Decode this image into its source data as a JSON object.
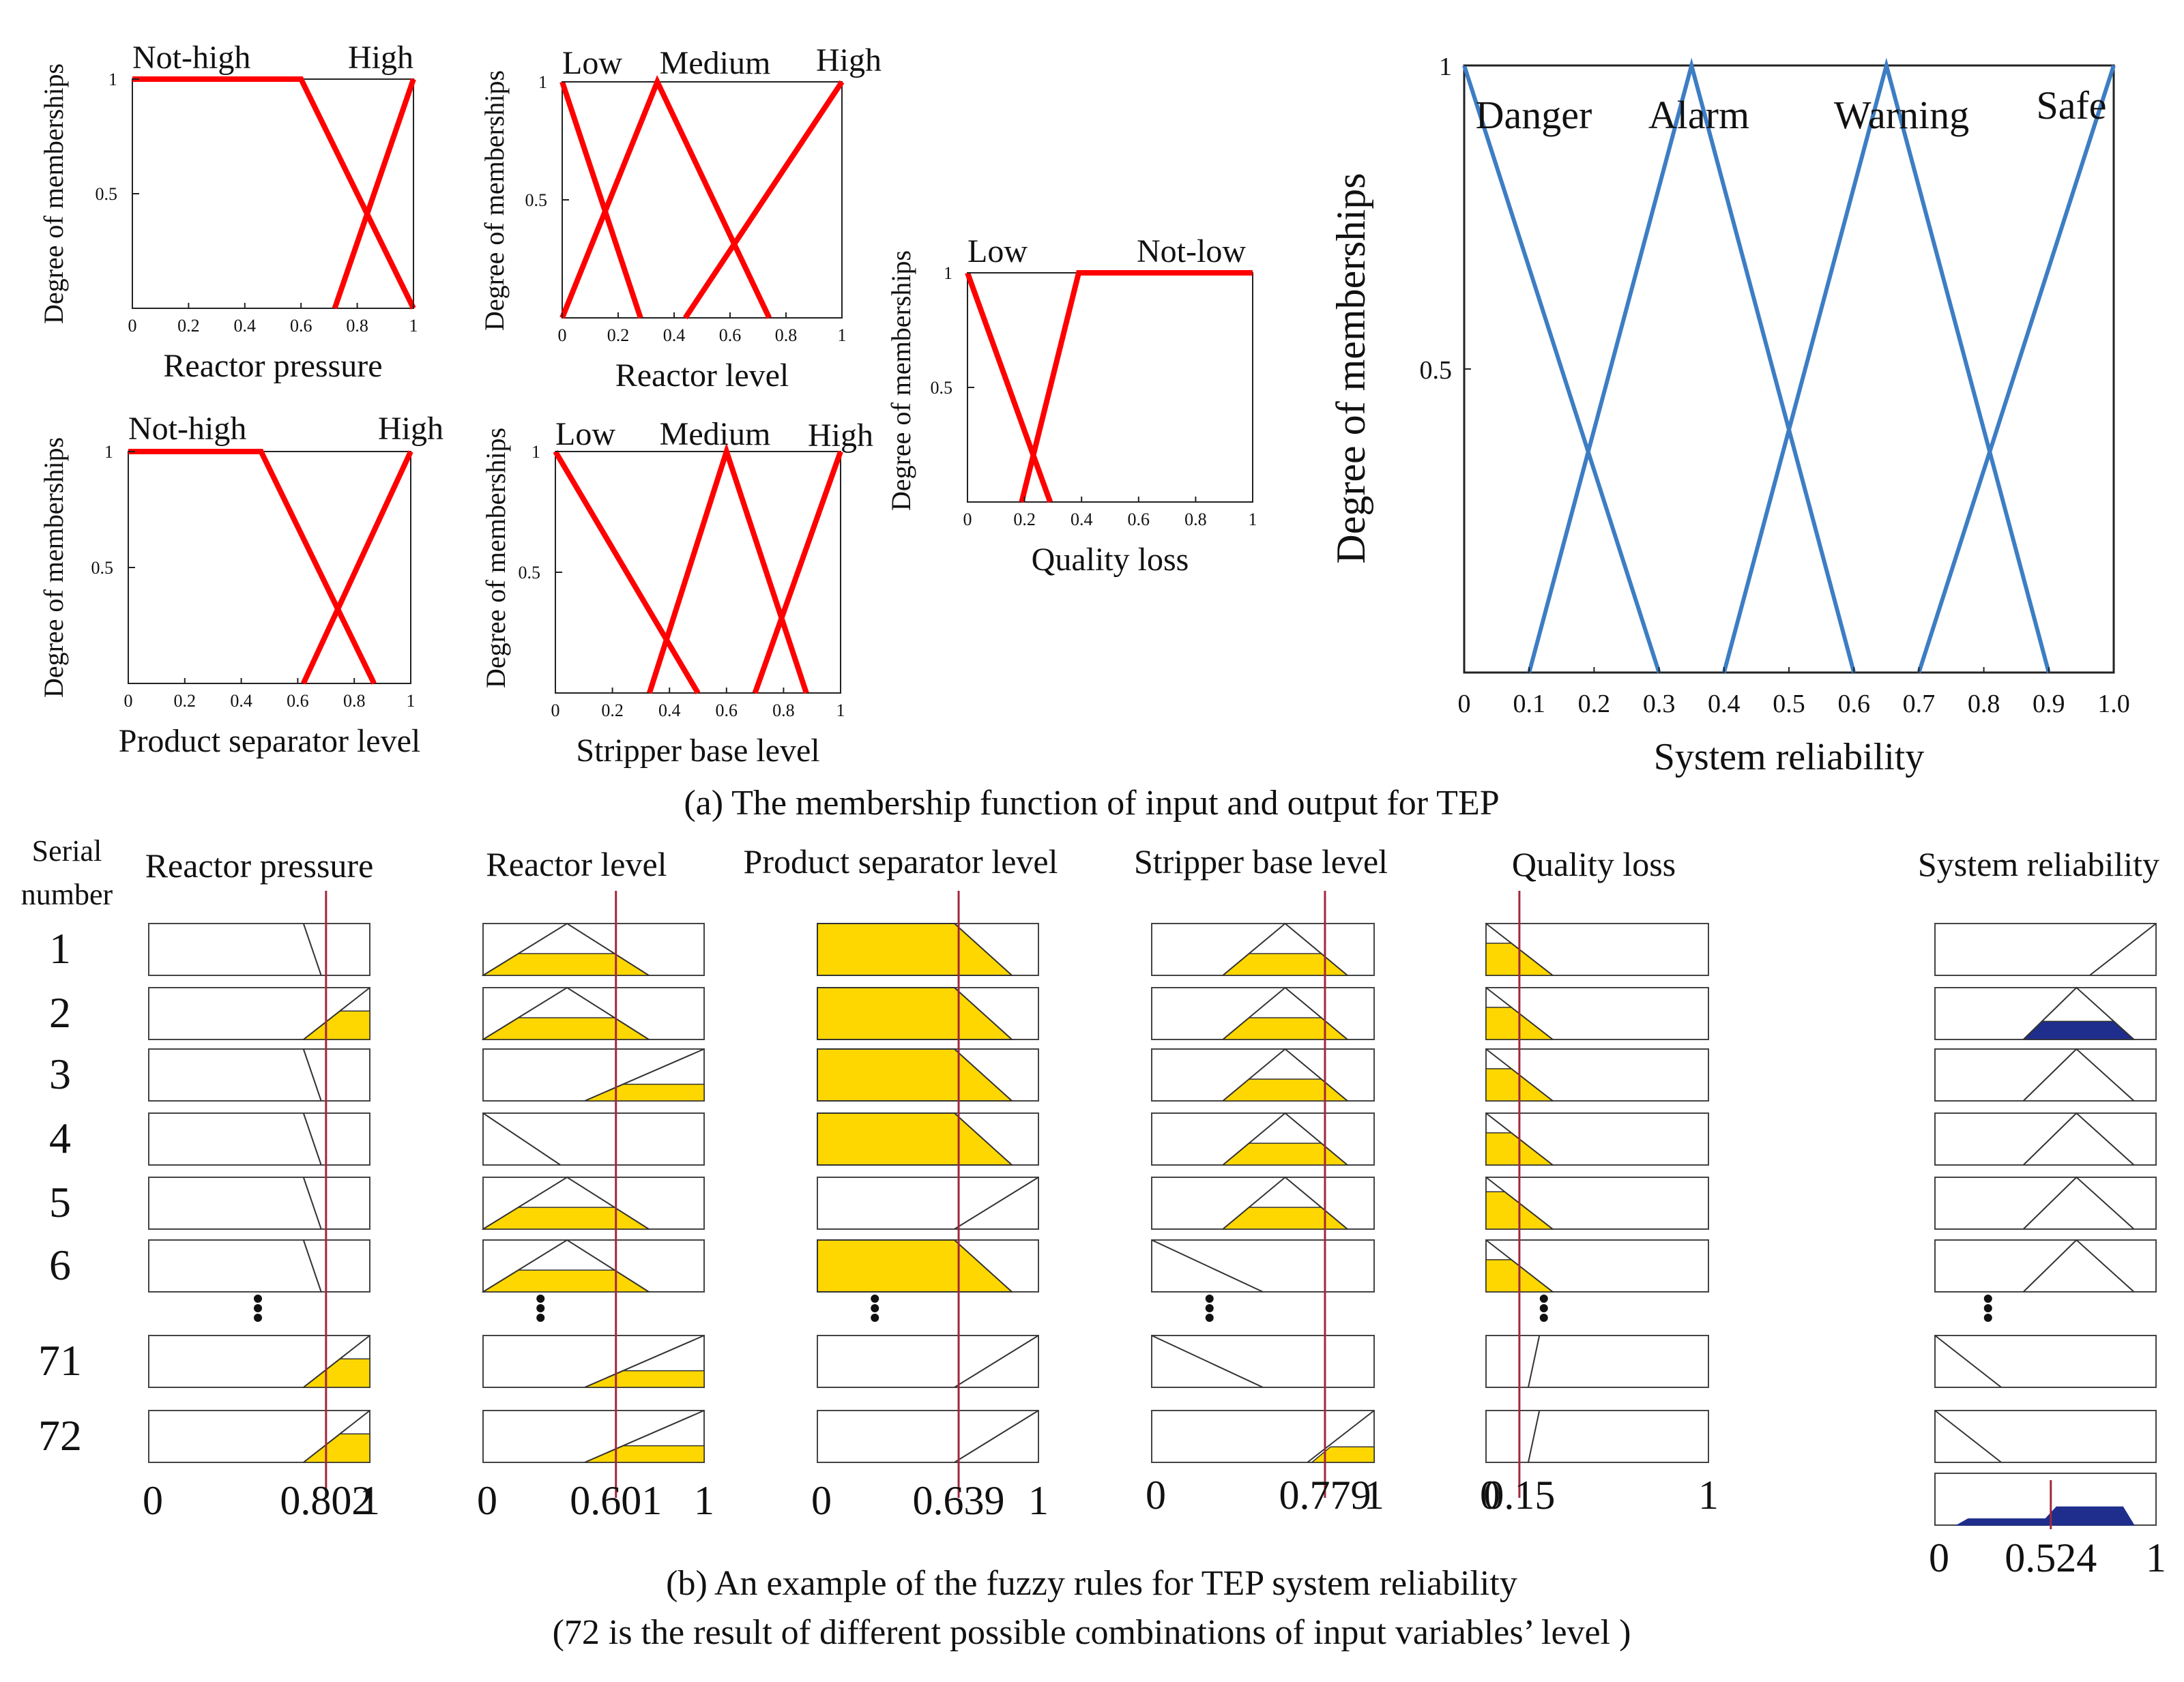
{
  "captions": {
    "a": "(a) The membership function of input and output for TEP",
    "b_line1": "(b) An example of the fuzzy rules for TEP system reliability",
    "b_line2": "(72 is the result of different possible combinations of input variables’ level )"
  },
  "rules_panel": {
    "serial_header": [
      "Serial",
      "number"
    ],
    "column_headers": [
      "Reactor pressure",
      "Reactor level",
      "Product separator level",
      "Stripper base level",
      "Quality loss",
      "System reliability"
    ],
    "row_labels": [
      "1",
      "2",
      "3",
      "4",
      "5",
      "6",
      "71",
      "72"
    ],
    "ellipsis": "⋮",
    "bottom_ticks": [
      [
        "0",
        "0.802",
        "1"
      ],
      [
        "0",
        "0.601",
        "1"
      ],
      [
        "0",
        "0.639",
        "1"
      ],
      [
        "0",
        "0.779",
        "1"
      ],
      [
        "0",
        "0.15",
        "1"
      ],
      [
        "0",
        "0.524",
        "1"
      ]
    ],
    "input_values": [
      0.802,
      0.601,
      0.639,
      0.779,
      0.15
    ],
    "output_value": 0.524,
    "colors": {
      "marker_line": "#a0283c",
      "fill_input": "#ffd700",
      "fill_output": "#1f2e8c"
    }
  },
  "chart_data": [
    {
      "type": "line",
      "xlabel": "Reactor pressure",
      "ylabel": "Degree of memberships",
      "xticks": [
        "0",
        "0.2",
        "0.4",
        "0.6",
        "0.8",
        "1"
      ],
      "yticks": [
        "0.5",
        "1"
      ],
      "xlim": [
        0,
        1
      ],
      "ylim": [
        0,
        1
      ],
      "color": "#ff0000",
      "series": [
        {
          "name": "Not-high",
          "x": [
            0,
            0.6,
            1.0
          ],
          "y": [
            1,
            1,
            0
          ]
        },
        {
          "name": "High",
          "x": [
            0.72,
            1.0
          ],
          "y": [
            0,
            1
          ]
        }
      ]
    },
    {
      "type": "line",
      "xlabel": "Reactor level",
      "ylabel": "Degree of memberships",
      "xticks": [
        "0",
        "0.2",
        "0.4",
        "0.6",
        "0.8",
        "1"
      ],
      "yticks": [
        "0.5",
        "1"
      ],
      "xlim": [
        0,
        1
      ],
      "ylim": [
        0,
        1
      ],
      "color": "#ff0000",
      "series": [
        {
          "name": "Low",
          "x": [
            0,
            0.28
          ],
          "y": [
            1,
            0
          ]
        },
        {
          "name": "Medium",
          "x": [
            0,
            0.34,
            0.74
          ],
          "y": [
            0,
            1,
            0
          ]
        },
        {
          "name": "High",
          "x": [
            0.44,
            1.0
          ],
          "y": [
            0,
            1
          ]
        }
      ]
    },
    {
      "type": "line",
      "xlabel": "Product separator level",
      "ylabel": "Degree of memberships",
      "xticks": [
        "0",
        "0.2",
        "0.4",
        "0.6",
        "0.8",
        "1"
      ],
      "yticks": [
        "0.5",
        "1"
      ],
      "xlim": [
        0,
        1
      ],
      "ylim": [
        0,
        1
      ],
      "color": "#ff0000",
      "series": [
        {
          "name": "Not-high",
          "x": [
            0,
            0.47,
            0.87
          ],
          "y": [
            1,
            1,
            0
          ]
        },
        {
          "name": "High",
          "x": [
            0.62,
            1.0
          ],
          "y": [
            0,
            1
          ]
        }
      ]
    },
    {
      "type": "line",
      "xlabel": "Stripper base level",
      "ylabel": "Degree of memberships",
      "xticks": [
        "0",
        "0.2",
        "0.4",
        "0.6",
        "0.8",
        "1"
      ],
      "yticks": [
        "0.5",
        "1"
      ],
      "xlim": [
        0,
        1
      ],
      "ylim": [
        0,
        1
      ],
      "color": "#ff0000",
      "series": [
        {
          "name": "Low",
          "x": [
            0,
            0.5
          ],
          "y": [
            1,
            0
          ]
        },
        {
          "name": "Medium",
          "x": [
            0.33,
            0.6,
            0.88
          ],
          "y": [
            0,
            1,
            0
          ]
        },
        {
          "name": "High",
          "x": [
            0.7,
            1.0
          ],
          "y": [
            0,
            1
          ]
        }
      ]
    },
    {
      "type": "line",
      "xlabel": "Quality loss",
      "ylabel": "Degree of memberships",
      "xticks": [
        "0",
        "0.2",
        "0.4",
        "0.6",
        "0.8",
        "1"
      ],
      "yticks": [
        "0.5",
        "1"
      ],
      "xlim": [
        0,
        1
      ],
      "ylim": [
        0,
        1
      ],
      "color": "#ff0000",
      "series": [
        {
          "name": "Low",
          "x": [
            0,
            0.29
          ],
          "y": [
            1,
            0
          ]
        },
        {
          "name": "Not-low",
          "x": [
            0.19,
            0.39,
            1.0
          ],
          "y": [
            0,
            1,
            1
          ]
        }
      ]
    },
    {
      "type": "line",
      "xlabel": "System reliability",
      "ylabel": "Degree of memberships",
      "xticks": [
        "0",
        "0.1",
        "0.2",
        "0.3",
        "0.4",
        "0.5",
        "0.6",
        "0.7",
        "0.8",
        "0.9",
        "1.0"
      ],
      "yticks": [
        "0.5",
        "1"
      ],
      "xlim": [
        0,
        1
      ],
      "ylim": [
        0,
        1
      ],
      "color": "#3d7dc4",
      "series": [
        {
          "name": "Danger",
          "x": [
            0,
            0.3
          ],
          "y": [
            1,
            0
          ]
        },
        {
          "name": "Alarm",
          "x": [
            0.1,
            0.35,
            0.6
          ],
          "y": [
            0,
            1,
            0
          ]
        },
        {
          "name": "Warning",
          "x": [
            0.4,
            0.65,
            0.9
          ],
          "y": [
            0,
            1,
            0
          ]
        },
        {
          "name": "Safe",
          "x": [
            0.7,
            1.0
          ],
          "y": [
            0,
            1
          ]
        }
      ]
    }
  ]
}
